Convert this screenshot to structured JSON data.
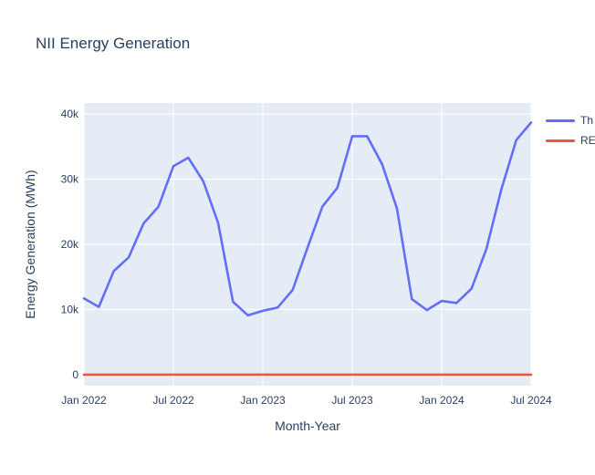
{
  "chart": {
    "title": "NII Energy Generation",
    "xlabel": "Month-Year",
    "ylabel": "Energy Generation (MWh)"
  },
  "colors": {
    "plot_background": "#e5ecf6",
    "grid": "#ffffff",
    "text": "#2a3f5f",
    "series_blue": "#636efa",
    "series_red": "#ef553b"
  },
  "chart_data": {
    "type": "line",
    "title": "NII Energy Generation",
    "xlabel": "Month-Year",
    "ylabel": "Energy Generation (MWh)",
    "categories": [
      "Jan 2022",
      "Feb 2022",
      "Mar 2022",
      "Apr 2022",
      "May 2022",
      "Jun 2022",
      "Jul 2022",
      "Aug 2022",
      "Sep 2022",
      "Oct 2022",
      "Nov 2022",
      "Dec 2022",
      "Jan 2023",
      "Feb 2023",
      "Mar 2023",
      "Apr 2023",
      "May 2023",
      "Jun 2023",
      "Jul 2023",
      "Aug 2023",
      "Sep 2023",
      "Oct 2023",
      "Nov 2023",
      "Dec 2023",
      "Jan 2024",
      "Feb 2024",
      "Mar 2024",
      "Apr 2024",
      "May 2024",
      "Jun 2024",
      "Jul 2024"
    ],
    "series": [
      {
        "name": "Th",
        "color_key": "series_blue",
        "color": "#636efa",
        "values": [
          11700,
          10400,
          15900,
          18000,
          23200,
          25800,
          32000,
          33300,
          29700,
          23300,
          11200,
          9100,
          9800,
          10300,
          13000,
          19500,
          25800,
          28700,
          36600,
          36600,
          32300,
          25500,
          11600,
          9900,
          11300,
          11000,
          13200,
          19300,
          28400,
          36000,
          38700
        ]
      },
      {
        "name": "RE",
        "color_key": "series_red",
        "color": "#ef553b",
        "values": [
          0,
          0,
          0,
          0,
          0,
          0,
          0,
          0,
          0,
          0,
          0,
          0,
          0,
          0,
          0,
          0,
          0,
          0,
          0,
          0,
          0,
          0,
          0,
          0,
          0,
          0,
          0,
          0,
          0,
          0,
          0
        ]
      }
    ],
    "x_tick_labels": [
      "Jan 2022",
      "Jul 2022",
      "Jan 2023",
      "Jul 2023",
      "Jan 2024",
      "Jul 2024"
    ],
    "x_tick_indices": [
      0,
      6,
      12,
      18,
      24,
      30
    ],
    "y_ticks": [
      0,
      10000,
      20000,
      30000,
      40000
    ],
    "y_tick_labels": [
      "0",
      "10k",
      "20k",
      "30k",
      "40k"
    ],
    "ylim": [
      -1700,
      41700
    ],
    "grid": true,
    "legend_position": "right-outside-clipped"
  }
}
